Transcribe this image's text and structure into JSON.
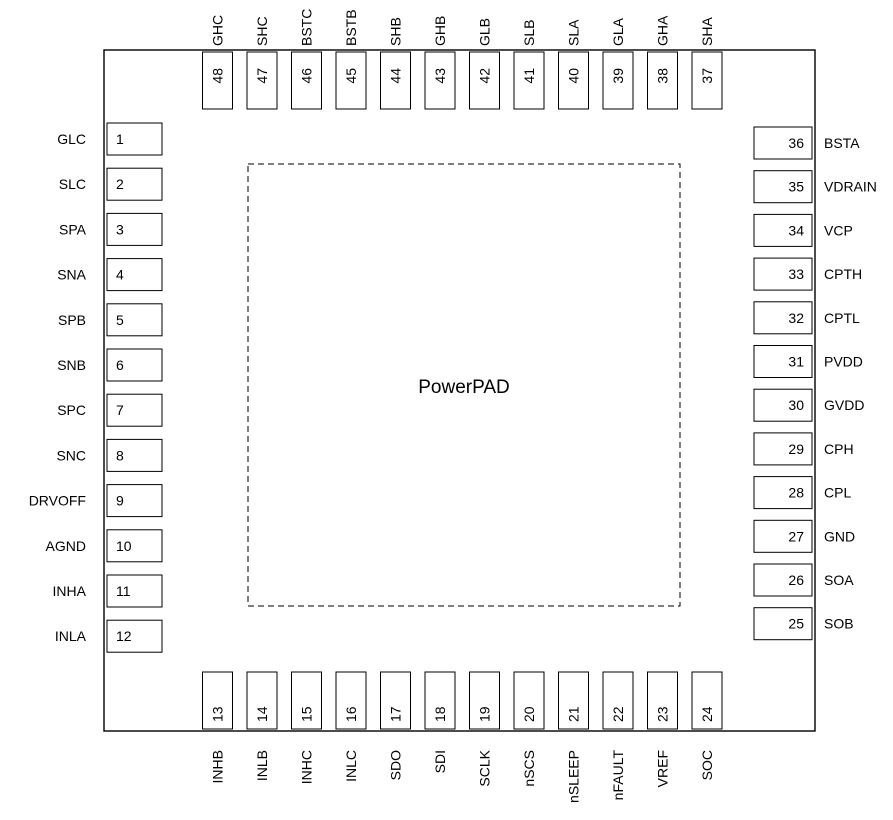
{
  "package": {
    "pad_label": "PowerPAD",
    "pins": {
      "left": [
        {
          "num": "1",
          "name": "GLC"
        },
        {
          "num": "2",
          "name": "SLC"
        },
        {
          "num": "3",
          "name": "SPA"
        },
        {
          "num": "4",
          "name": "SNA"
        },
        {
          "num": "5",
          "name": "SPB"
        },
        {
          "num": "6",
          "name": "SNB"
        },
        {
          "num": "7",
          "name": "SPC"
        },
        {
          "num": "8",
          "name": "SNC"
        },
        {
          "num": "9",
          "name": "DRVOFF"
        },
        {
          "num": "10",
          "name": "AGND"
        },
        {
          "num": "11",
          "name": "INHA"
        },
        {
          "num": "12",
          "name": "INLA"
        }
      ],
      "bottom": [
        {
          "num": "13",
          "name": "INHB"
        },
        {
          "num": "14",
          "name": "INLB"
        },
        {
          "num": "15",
          "name": "INHC"
        },
        {
          "num": "16",
          "name": "INLC"
        },
        {
          "num": "17",
          "name": "SDO"
        },
        {
          "num": "18",
          "name": "SDI"
        },
        {
          "num": "19",
          "name": "SCLK"
        },
        {
          "num": "20",
          "name": "nSCS"
        },
        {
          "num": "21",
          "name": "nSLEEP"
        },
        {
          "num": "22",
          "name": "nFAULT"
        },
        {
          "num": "23",
          "name": "VREF"
        },
        {
          "num": "24",
          "name": "SOC"
        }
      ],
      "right": [
        {
          "num": "36",
          "name": "BSTA"
        },
        {
          "num": "35",
          "name": "VDRAIN"
        },
        {
          "num": "34",
          "name": "VCP"
        },
        {
          "num": "33",
          "name": "CPTH"
        },
        {
          "num": "32",
          "name": "CPTL"
        },
        {
          "num": "31",
          "name": "PVDD"
        },
        {
          "num": "30",
          "name": "GVDD"
        },
        {
          "num": "29",
          "name": "CPH"
        },
        {
          "num": "28",
          "name": "CPL"
        },
        {
          "num": "27",
          "name": "GND"
        },
        {
          "num": "26",
          "name": "SOA"
        },
        {
          "num": "25",
          "name": "SOB"
        }
      ],
      "top": [
        {
          "num": "48",
          "name": "GHC"
        },
        {
          "num": "47",
          "name": "SHC"
        },
        {
          "num": "46",
          "name": "BSTC"
        },
        {
          "num": "45",
          "name": "BSTB"
        },
        {
          "num": "44",
          "name": "SHB"
        },
        {
          "num": "43",
          "name": "GHB"
        },
        {
          "num": "42",
          "name": "GLB"
        },
        {
          "num": "41",
          "name": "SLB"
        },
        {
          "num": "40",
          "name": "SLA"
        },
        {
          "num": "39",
          "name": "GLA"
        },
        {
          "num": "38",
          "name": "GHA"
        },
        {
          "num": "37",
          "name": "SHA"
        }
      ]
    }
  }
}
